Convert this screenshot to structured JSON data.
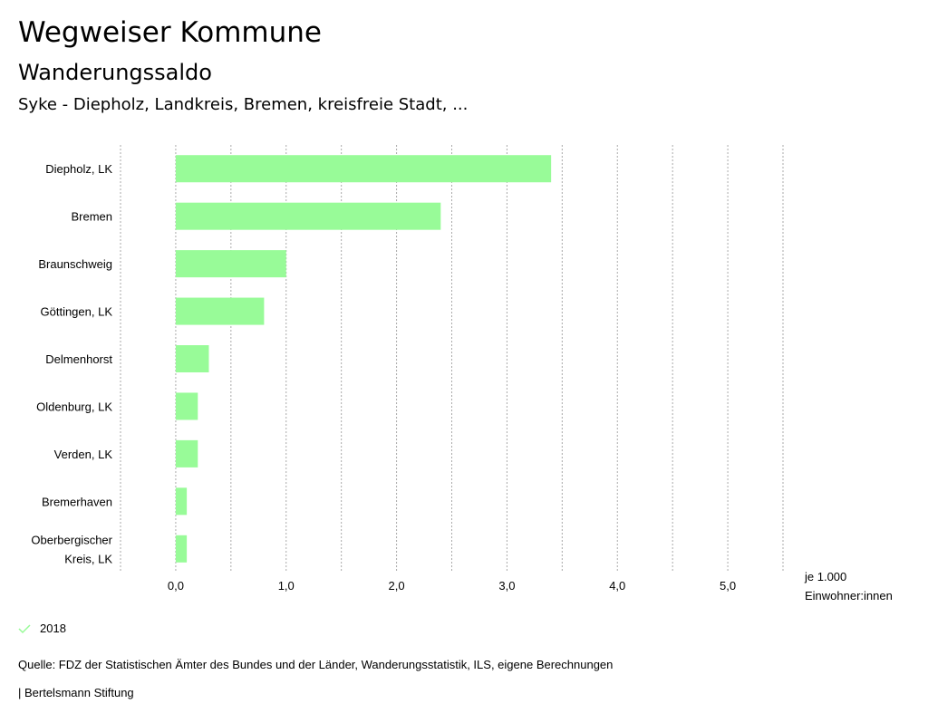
{
  "header": {
    "title": "Wegweiser Kommune",
    "subtitle": "Wanderungssaldo",
    "region": "Syke - Diepholz, Landkreis, Bremen, kreisfreie Stadt, ..."
  },
  "chart_data": {
    "type": "bar",
    "orientation": "horizontal",
    "categories": [
      [
        "Diepholz, LK"
      ],
      [
        "Bremen"
      ],
      [
        "Braunschweig"
      ],
      [
        "Göttingen, LK"
      ],
      [
        "Delmenhorst"
      ],
      [
        "Oldenburg, LK"
      ],
      [
        "Verden, LK"
      ],
      [
        "Bremerhaven"
      ],
      [
        "Oberbergischer",
        "Kreis, LK"
      ]
    ],
    "series": [
      {
        "name": "2018",
        "values": [
          3.4,
          2.4,
          1.0,
          0.8,
          0.3,
          0.2,
          0.2,
          0.1,
          0.1
        ],
        "color": "#98fb98"
      }
    ],
    "xlim": [
      -0.5,
      5.5
    ],
    "xticks": [
      0,
      1,
      2,
      3,
      4,
      5
    ],
    "xtick_labels": [
      "0,0",
      "1,0",
      "2,0",
      "3,0",
      "4,0",
      "5,0"
    ],
    "xlabel": [
      "je 1.000",
      "Einwohner:innen"
    ],
    "grid": "vertical dotted every 0.5",
    "legend": "bottom-left"
  },
  "legend": {
    "label": "2018",
    "icon": "check-icon"
  },
  "footer": {
    "source": "Quelle: FDZ der Statistischen Ämter des Bundes und der Länder, Wanderungsstatistik, ILS, eigene Berechnungen",
    "brand": "| Bertelsmann Stiftung"
  }
}
